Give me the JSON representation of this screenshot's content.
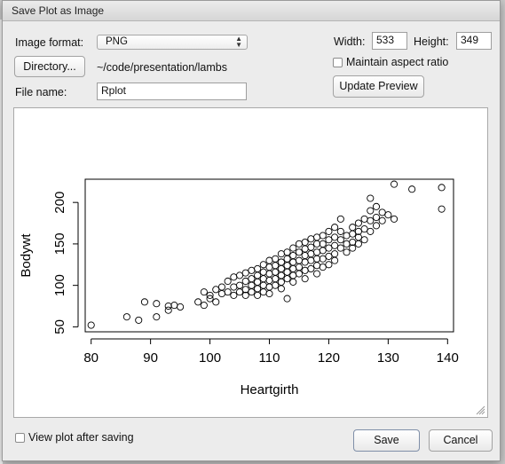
{
  "window": {
    "title": "Save Plot as Image"
  },
  "format": {
    "label": "Image format:",
    "selected": "PNG"
  },
  "directory": {
    "button_label": "Directory...",
    "path": "~/code/presentation/lambs"
  },
  "filename": {
    "label": "File name:",
    "value": "Rplot"
  },
  "size": {
    "width_label": "Width:",
    "width_value": "533",
    "height_label": "Height:",
    "height_value": "349"
  },
  "aspect": {
    "label": "Maintain aspect ratio",
    "checked": false
  },
  "update_preview_label": "Update Preview",
  "view_after": {
    "label": "View plot after saving",
    "checked": false
  },
  "buttons": {
    "save": "Save",
    "cancel": "Cancel"
  },
  "chart_data": {
    "type": "scatter",
    "xlabel": "Heartgirth",
    "ylabel": "Bodywt",
    "xlim": [
      79,
      141
    ],
    "ylim": [
      44,
      228
    ],
    "xticks": [
      80,
      90,
      100,
      110,
      120,
      130,
      140
    ],
    "yticks": [
      50,
      100,
      150,
      200
    ],
    "marker": "open-circle",
    "points": [
      [
        80,
        52
      ],
      [
        86,
        62
      ],
      [
        88,
        58
      ],
      [
        89,
        80
      ],
      [
        91,
        78
      ],
      [
        91,
        62
      ],
      [
        93,
        70
      ],
      [
        93,
        75
      ],
      [
        94,
        76
      ],
      [
        95,
        74
      ],
      [
        98,
        80
      ],
      [
        99,
        92
      ],
      [
        99,
        76
      ],
      [
        100,
        88
      ],
      [
        100,
        84
      ],
      [
        101,
        95
      ],
      [
        101,
        80
      ],
      [
        102,
        98
      ],
      [
        102,
        90
      ],
      [
        103,
        105
      ],
      [
        103,
        92
      ],
      [
        104,
        110
      ],
      [
        104,
        98
      ],
      [
        104,
        88
      ],
      [
        105,
        112
      ],
      [
        105,
        100
      ],
      [
        105,
        92
      ],
      [
        106,
        115
      ],
      [
        106,
        105
      ],
      [
        106,
        95
      ],
      [
        106,
        88
      ],
      [
        107,
        118
      ],
      [
        107,
        108
      ],
      [
        107,
        100
      ],
      [
        107,
        92
      ],
      [
        108,
        120
      ],
      [
        108,
        112
      ],
      [
        108,
        104
      ],
      [
        108,
        96
      ],
      [
        108,
        88
      ],
      [
        109,
        125
      ],
      [
        109,
        116
      ],
      [
        109,
        108
      ],
      [
        109,
        100
      ],
      [
        109,
        92
      ],
      [
        110,
        130
      ],
      [
        110,
        122
      ],
      [
        110,
        114
      ],
      [
        110,
        106
      ],
      [
        110,
        98
      ],
      [
        110,
        90
      ],
      [
        111,
        132
      ],
      [
        111,
        124
      ],
      [
        111,
        116
      ],
      [
        111,
        108
      ],
      [
        111,
        100
      ],
      [
        112,
        138
      ],
      [
        112,
        128
      ],
      [
        112,
        120
      ],
      [
        112,
        112
      ],
      [
        112,
        104
      ],
      [
        112,
        96
      ],
      [
        113,
        140
      ],
      [
        113,
        132
      ],
      [
        113,
        124
      ],
      [
        113,
        116
      ],
      [
        113,
        108
      ],
      [
        113,
        84
      ],
      [
        114,
        145
      ],
      [
        114,
        136
      ],
      [
        114,
        128
      ],
      [
        114,
        120
      ],
      [
        114,
        112
      ],
      [
        114,
        104
      ],
      [
        115,
        150
      ],
      [
        115,
        140
      ],
      [
        115,
        130
      ],
      [
        115,
        122
      ],
      [
        115,
        114
      ],
      [
        116,
        152
      ],
      [
        116,
        144
      ],
      [
        116,
        136
      ],
      [
        116,
        128
      ],
      [
        116,
        118
      ],
      [
        116,
        108
      ],
      [
        117,
        156
      ],
      [
        117,
        146
      ],
      [
        117,
        138
      ],
      [
        117,
        130
      ],
      [
        117,
        120
      ],
      [
        118,
        158
      ],
      [
        118,
        150
      ],
      [
        118,
        140
      ],
      [
        118,
        132
      ],
      [
        118,
        124
      ],
      [
        118,
        114
      ],
      [
        119,
        160
      ],
      [
        119,
        150
      ],
      [
        119,
        142
      ],
      [
        119,
        132
      ],
      [
        119,
        122
      ],
      [
        120,
        165
      ],
      [
        120,
        155
      ],
      [
        120,
        145
      ],
      [
        120,
        135
      ],
      [
        120,
        125
      ],
      [
        121,
        170
      ],
      [
        121,
        158
      ],
      [
        121,
        148
      ],
      [
        121,
        138
      ],
      [
        121,
        130
      ],
      [
        122,
        180
      ],
      [
        122,
        165
      ],
      [
        122,
        155
      ],
      [
        122,
        145
      ],
      [
        123,
        160
      ],
      [
        123,
        150
      ],
      [
        123,
        140
      ],
      [
        124,
        170
      ],
      [
        124,
        162
      ],
      [
        124,
        152
      ],
      [
        124,
        145
      ],
      [
        125,
        175
      ],
      [
        125,
        165
      ],
      [
        125,
        158
      ],
      [
        125,
        150
      ],
      [
        126,
        180
      ],
      [
        126,
        168
      ],
      [
        126,
        155
      ],
      [
        127,
        205
      ],
      [
        127,
        190
      ],
      [
        127,
        178
      ],
      [
        127,
        165
      ],
      [
        128,
        195
      ],
      [
        128,
        182
      ],
      [
        128,
        172
      ],
      [
        129,
        188
      ],
      [
        129,
        178
      ],
      [
        130,
        185
      ],
      [
        131,
        222
      ],
      [
        131,
        180
      ],
      [
        134,
        216
      ],
      [
        139,
        218
      ],
      [
        139,
        192
      ]
    ]
  }
}
